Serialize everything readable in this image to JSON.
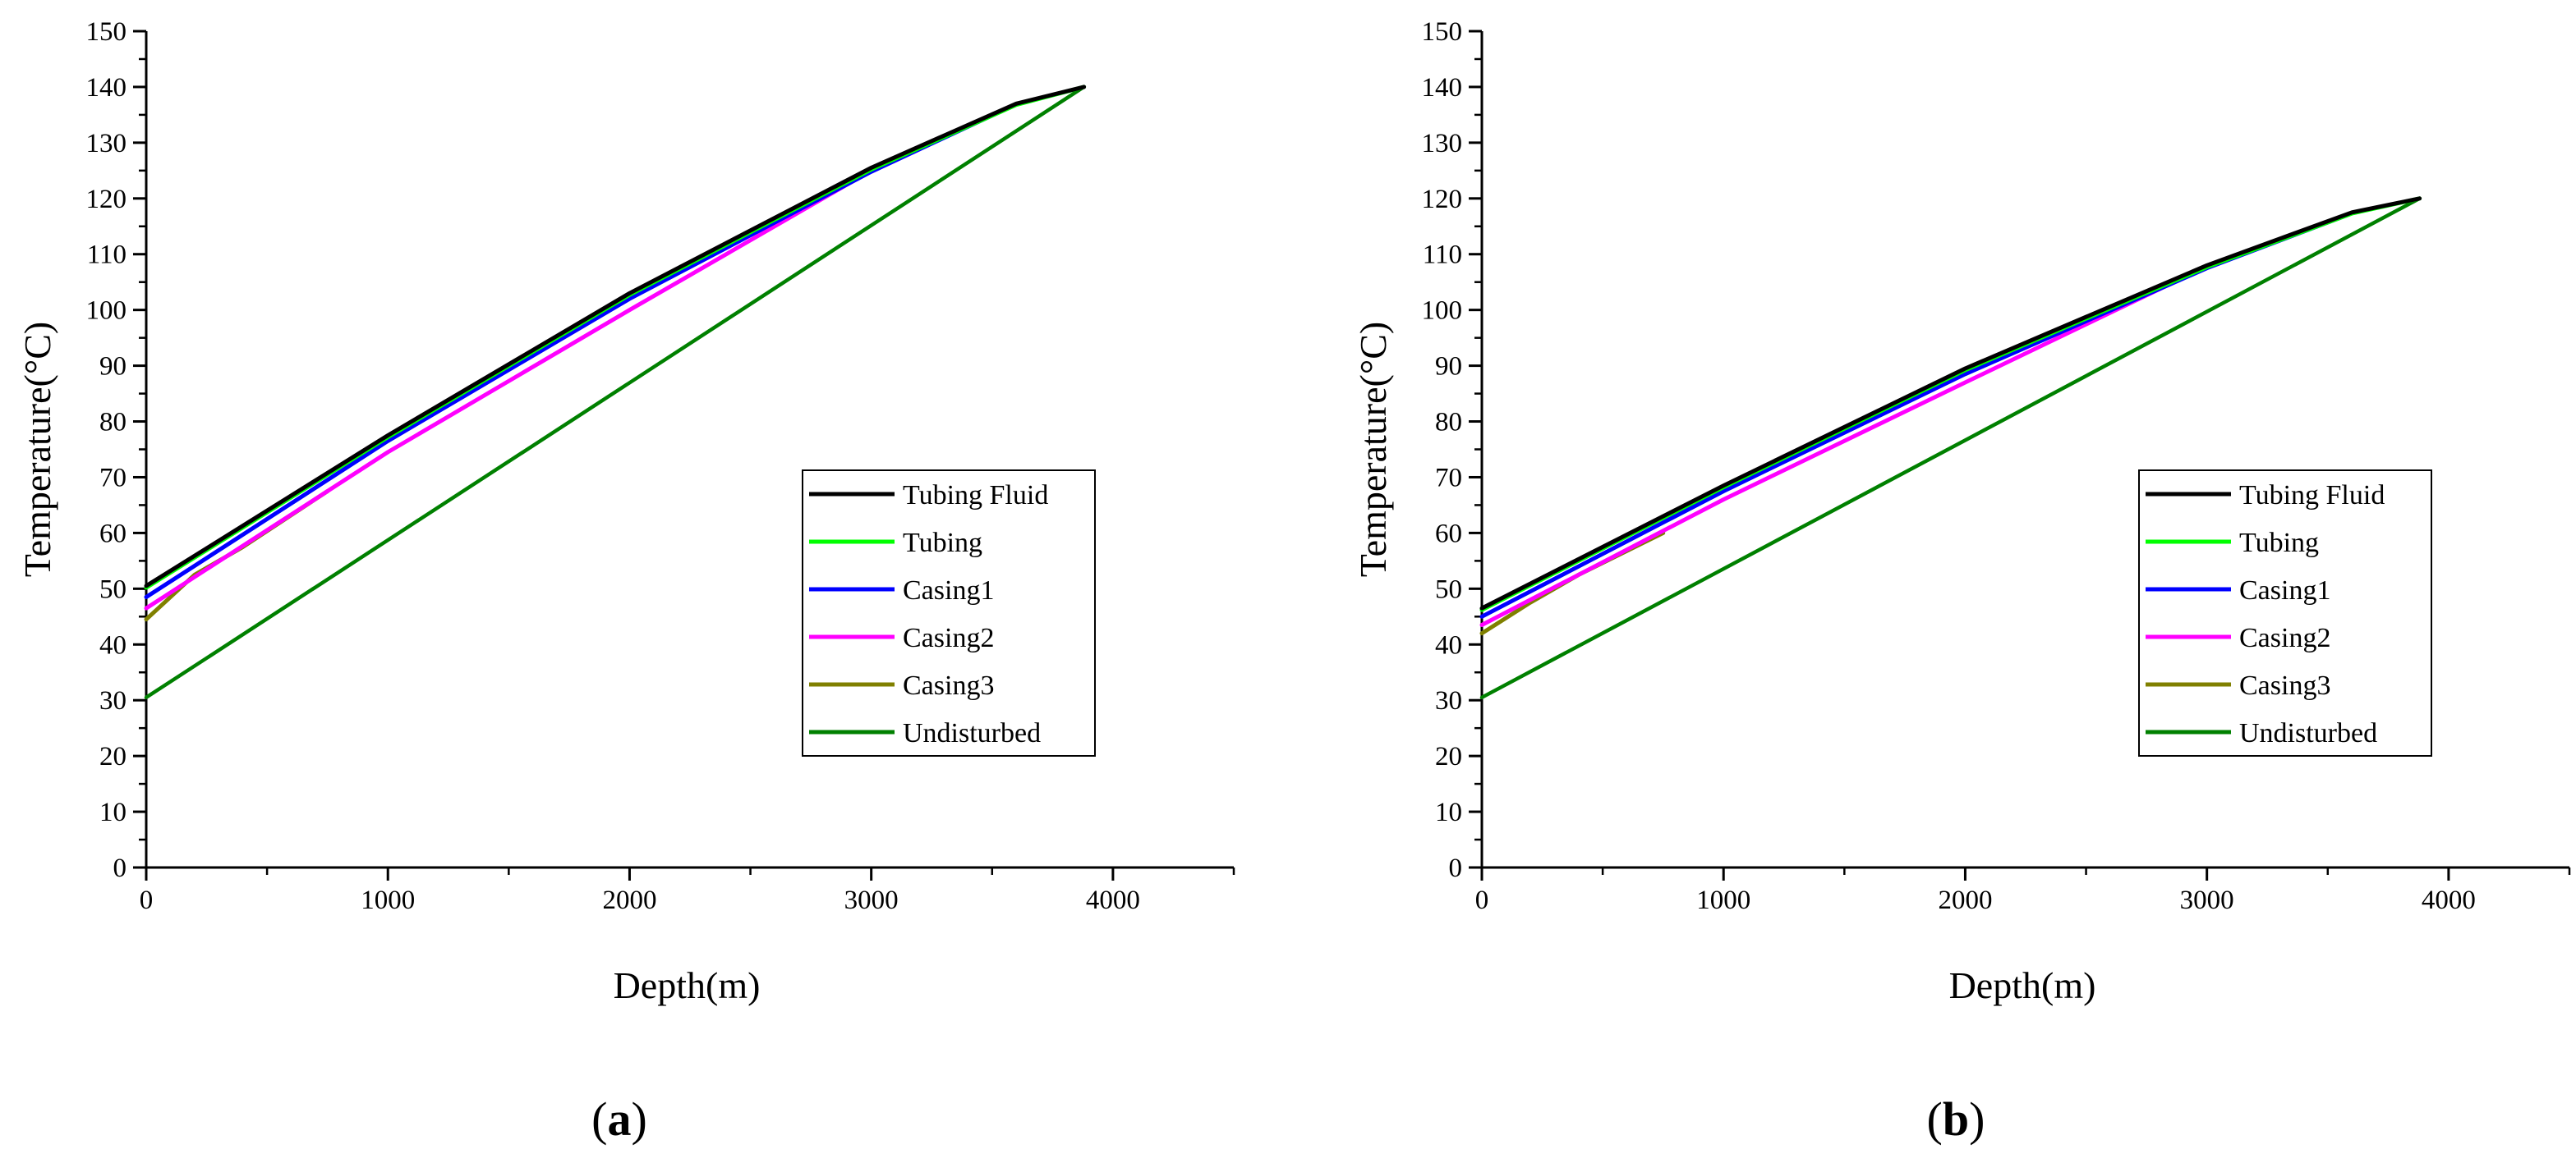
{
  "chart_data": [
    {
      "panel": "a",
      "type": "line",
      "caption_open": "(",
      "caption_letter": "a",
      "caption_close": ")",
      "xlabel": "Depth(m)",
      "ylabel": "Temperature(°C)",
      "xlim": [
        0,
        4500
      ],
      "ylim": [
        0,
        150
      ],
      "xticks": [
        0,
        1000,
        2000,
        3000,
        4000
      ],
      "yticks": [
        0,
        10,
        20,
        30,
        40,
        50,
        60,
        70,
        80,
        90,
        100,
        110,
        120,
        130,
        140,
        150
      ],
      "legend_position": "center-right",
      "series": [
        {
          "name": "Tubing Fluid",
          "color": "#000000",
          "x": [
            0,
            1000,
            2000,
            3000,
            3600,
            3880
          ],
          "y": [
            50.5,
            77.5,
            103,
            125.5,
            137,
            140
          ]
        },
        {
          "name": "Tubing",
          "color": "#00ff00",
          "x": [
            0,
            1000,
            2000,
            3000,
            3600,
            3880
          ],
          "y": [
            50.2,
            77.2,
            102.7,
            125.2,
            136.8,
            140
          ]
        },
        {
          "name": "Casing1",
          "color": "#0000ff",
          "x": [
            0,
            1000,
            2000,
            3000,
            3580
          ],
          "y": [
            48.5,
            76.5,
            102,
            124.8,
            136.5
          ]
        },
        {
          "name": "Casing2",
          "color": "#ff00ff",
          "x": [
            0,
            1000,
            2000,
            2960
          ],
          "y": [
            46.5,
            74.5,
            100,
            124
          ]
        },
        {
          "name": "Casing3",
          "color": "#808000",
          "x": [
            0,
            200,
            400,
            750
          ],
          "y": [
            44.5,
            52.5,
            57.5,
            67.5
          ]
        },
        {
          "name": "Undisturbed",
          "color": "#008000",
          "x": [
            0,
            3880
          ],
          "y": [
            30.5,
            140
          ]
        }
      ]
    },
    {
      "panel": "b",
      "type": "line",
      "caption_open": "(",
      "caption_letter": "b",
      "caption_close": ")",
      "xlabel": "Depth(m)",
      "ylabel": "Temperature(°C)",
      "xlim": [
        0,
        4500
      ],
      "ylim": [
        0,
        150
      ],
      "xticks": [
        0,
        1000,
        2000,
        3000,
        4000
      ],
      "yticks": [
        0,
        10,
        20,
        30,
        40,
        50,
        60,
        70,
        80,
        90,
        100,
        110,
        120,
        130,
        140,
        150
      ],
      "legend_position": "center-right",
      "series": [
        {
          "name": "Tubing Fluid",
          "color": "#000000",
          "x": [
            0,
            1000,
            2000,
            3000,
            3600,
            3880
          ],
          "y": [
            46.5,
            68.5,
            89.5,
            108,
            117.5,
            120
          ]
        },
        {
          "name": "Tubing",
          "color": "#00ff00",
          "x": [
            0,
            1000,
            2000,
            3000,
            3600,
            3880
          ],
          "y": [
            46.2,
            68.2,
            89.2,
            107.7,
            117.3,
            120
          ]
        },
        {
          "name": "Casing1",
          "color": "#0000ff",
          "x": [
            0,
            1000,
            2000,
            3000,
            3580
          ],
          "y": [
            45,
            67.5,
            88.5,
            107.5,
            117
          ]
        },
        {
          "name": "Casing2",
          "color": "#ff00ff",
          "x": [
            0,
            1000,
            2000,
            2960
          ],
          "y": [
            43.5,
            66,
            87,
            107
          ]
        },
        {
          "name": "Casing3",
          "color": "#808000",
          "x": [
            0,
            200,
            400,
            750
          ],
          "y": [
            42,
            47.5,
            52.5,
            60
          ]
        },
        {
          "name": "Undisturbed",
          "color": "#008000",
          "x": [
            0,
            3880
          ],
          "y": [
            30.5,
            120
          ]
        }
      ]
    }
  ]
}
